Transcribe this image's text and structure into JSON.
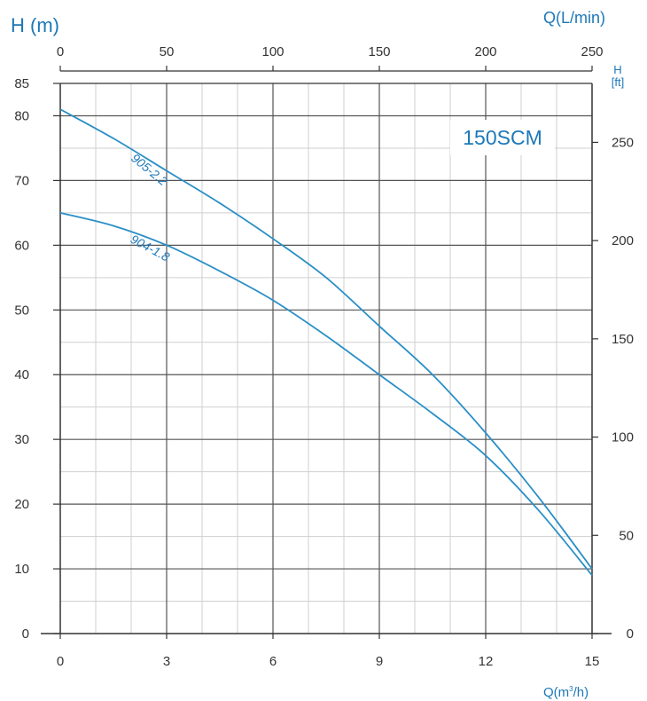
{
  "chart_data": {
    "type": "line",
    "title": "150SCM",
    "ylabel": "H (m)",
    "xlabel": "Q(m³/h)",
    "top_xlabel": "Q(L/min)",
    "right_ylabel": "H",
    "right_yunit": "[ft]",
    "xlim": [
      0,
      15
    ],
    "ylim": [
      0,
      85
    ],
    "top_xlim": [
      0,
      250
    ],
    "right_ylim": [
      0,
      280
    ],
    "x_ticks": [
      "0",
      "3",
      "6",
      "9",
      "12",
      "15"
    ],
    "y_ticks": [
      "0",
      "10",
      "20",
      "30",
      "40",
      "50",
      "60",
      "70",
      "80",
      "85"
    ],
    "top_x_ticks": [
      "0",
      "50",
      "100",
      "150",
      "200",
      "250"
    ],
    "right_y_ticks": [
      "0",
      "50",
      "100",
      "150",
      "200",
      "250"
    ],
    "grid": true,
    "series": [
      {
        "name": "905-2.2",
        "x": [
          0,
          1.5,
          3,
          4.5,
          6,
          7.5,
          9,
          10.5,
          12,
          13.5,
          15
        ],
        "y": [
          81,
          76.5,
          71.5,
          66.5,
          61,
          55,
          47.5,
          40,
          31,
          21,
          10
        ]
      },
      {
        "name": "904-1.8",
        "x": [
          0,
          1.5,
          3,
          4.5,
          6,
          7.5,
          9,
          10.5,
          12,
          13.5,
          15
        ],
        "y": [
          65,
          63,
          60,
          56,
          51.5,
          46,
          40,
          34,
          27.5,
          19,
          9
        ]
      }
    ],
    "colors": {
      "curve": "#2a8fc6",
      "text": "#1d78b8",
      "grid_major": "#555555",
      "grid_minor": "#cfcfcf"
    }
  }
}
